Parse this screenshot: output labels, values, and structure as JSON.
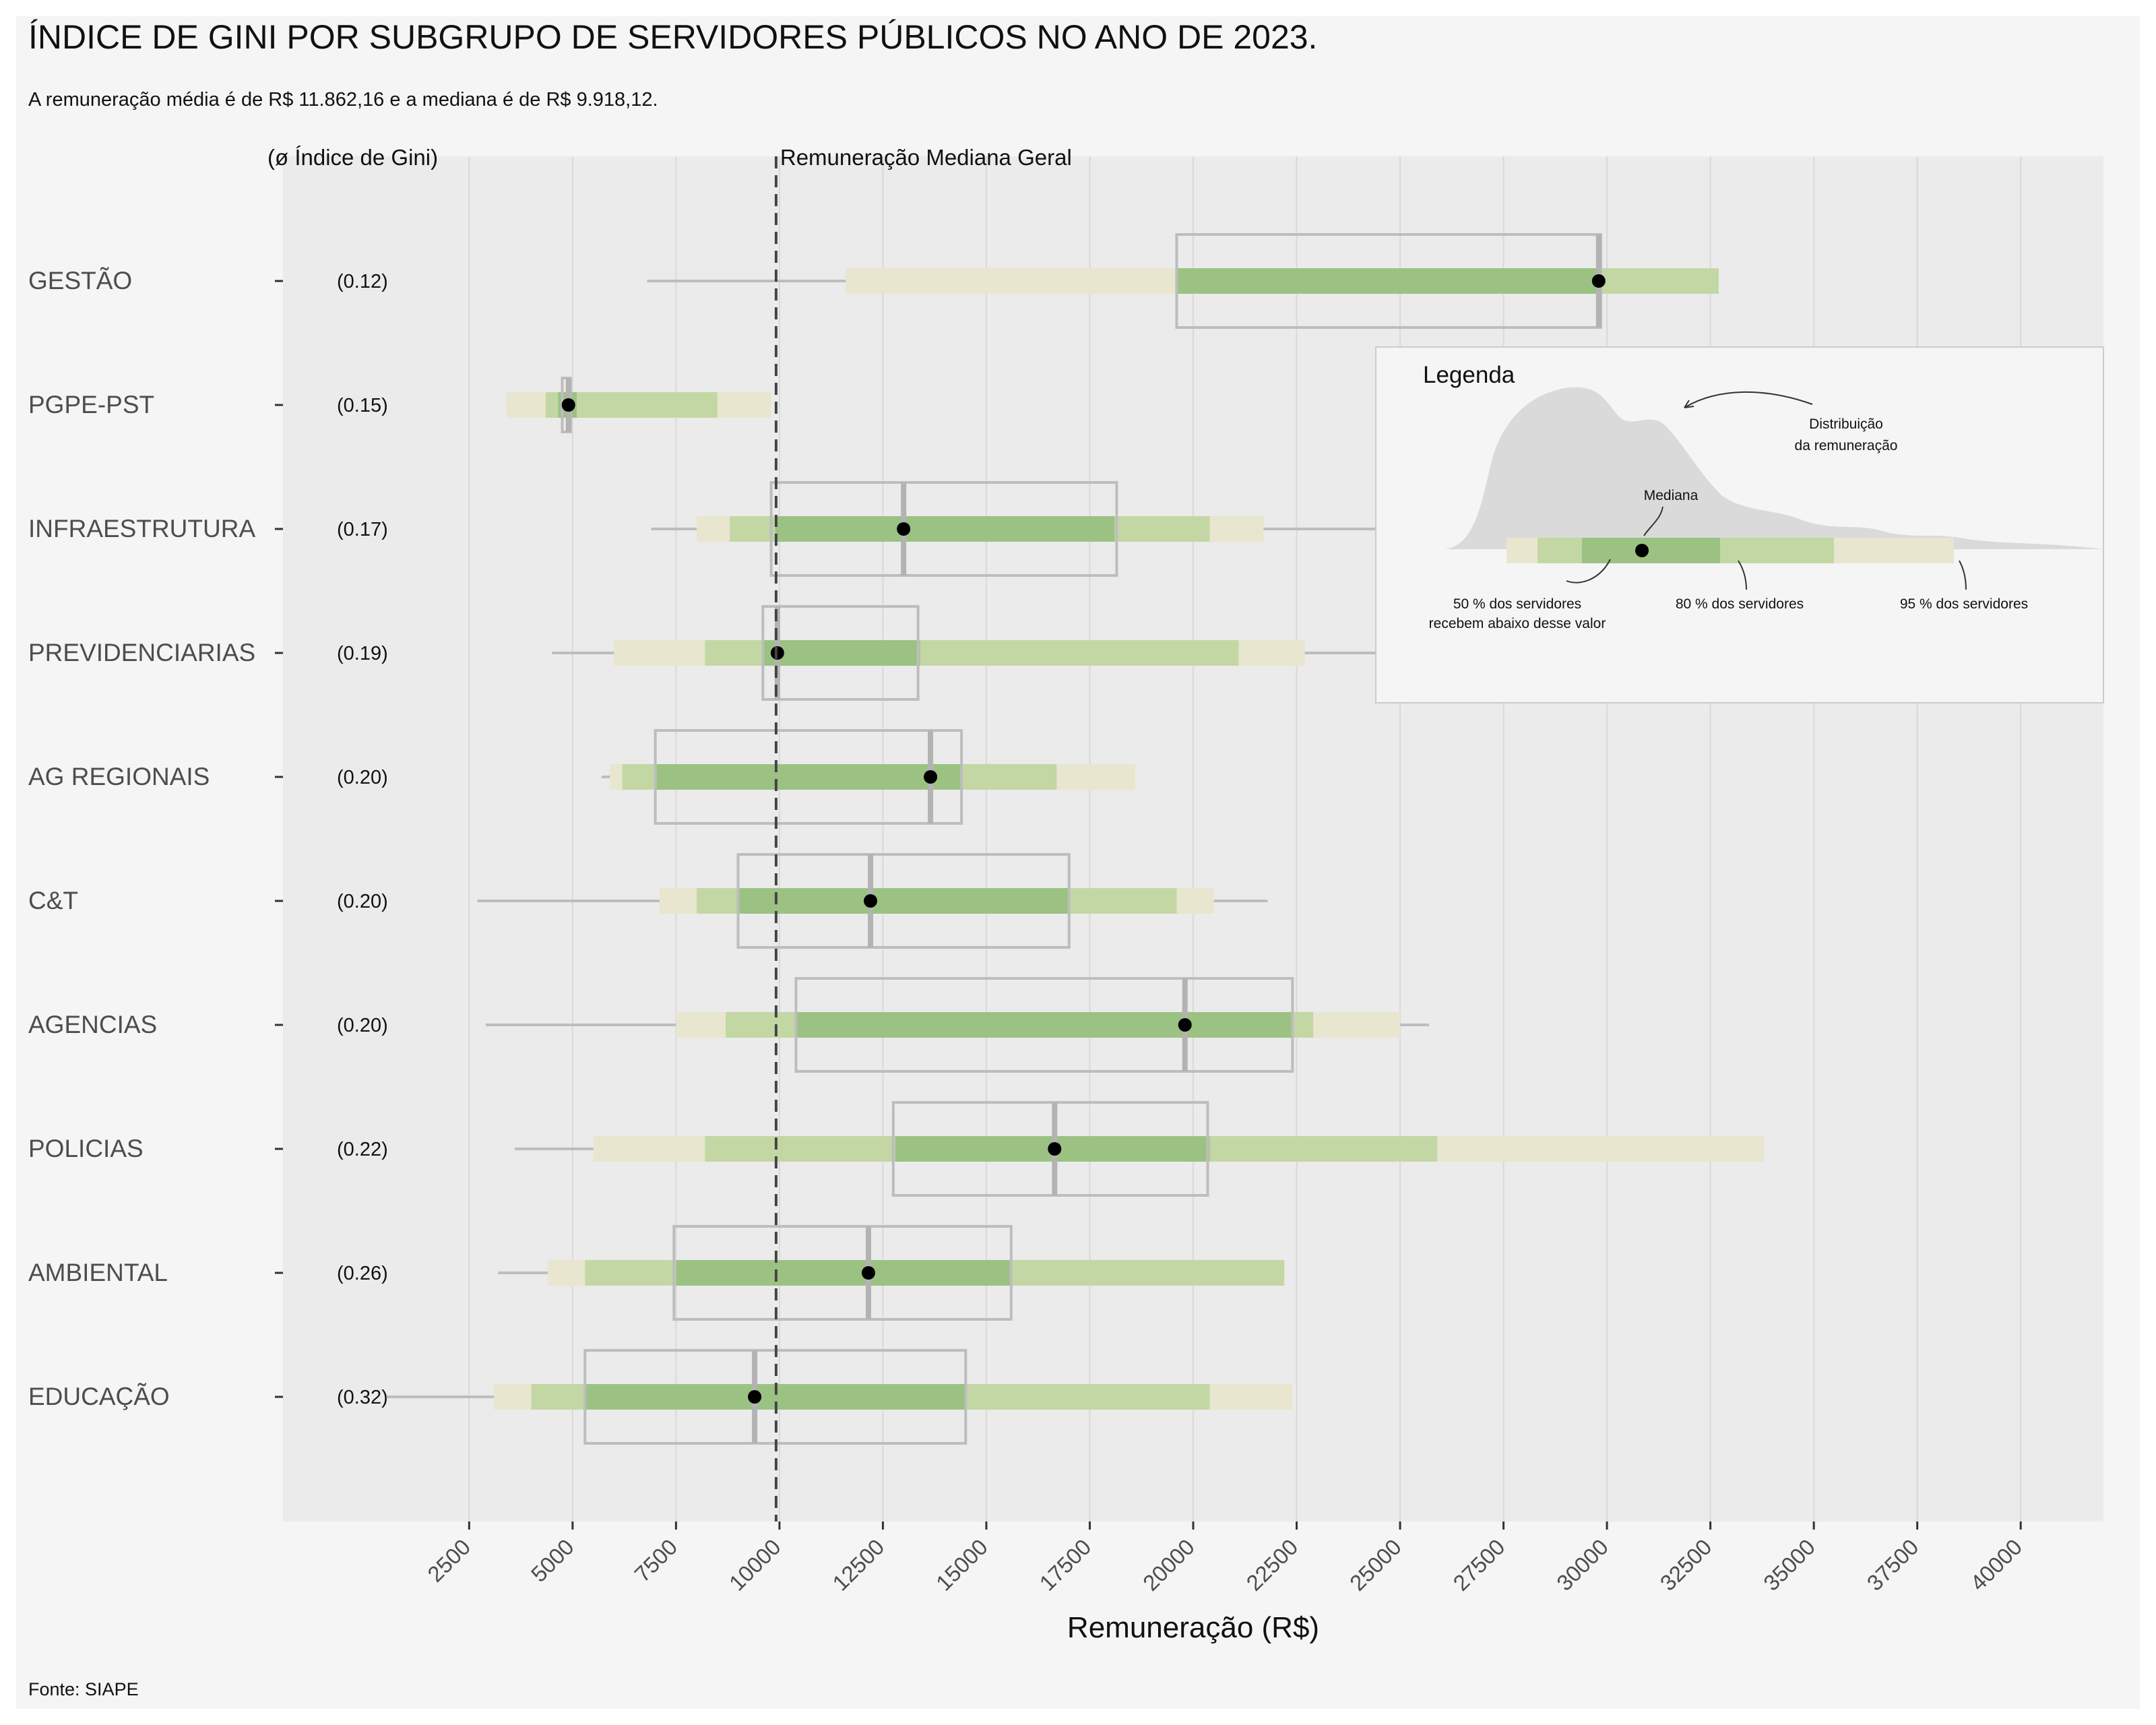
{
  "title": "ÍNDICE DE GINI POR SUBGRUPO DE SERVIDORES PÚBLICOS NO ANO DE 2023.",
  "subtitle": "A remuneração média é de R$ 11.862,16 e a mediana é de R$ 9.918,12.",
  "source": "Fonte: SIAPE",
  "colors": {
    "panel": "#ebebeb",
    "background": "#f5f5f5",
    "band95": "#e8e6cf",
    "band80": "#c3d7a4",
    "band50": "#9bc283",
    "box": "#bdbdbd",
    "dot": "#000000",
    "grid": "#d9d9d9"
  },
  "chart_data": {
    "type": "boxplot-interval",
    "xlabel": "Remuneração (R$)",
    "xticks": [
      2500,
      5000,
      7500,
      10000,
      12500,
      15000,
      17500,
      20000,
      22500,
      25000,
      27500,
      30000,
      32500,
      35000,
      37500,
      40000
    ],
    "xlim": [
      -2000,
      42000
    ],
    "gini_header": "(ø Índice de Gini)",
    "reference_line": {
      "value": 9918.12,
      "label": "Remuneração Mediana Geral"
    },
    "groups": [
      {
        "name": "GESTÃO",
        "gini": "(0.12)",
        "whisker": [
          6800,
          29800
        ],
        "p95": [
          11600,
          32700
        ],
        "p80": [
          19600,
          32700
        ],
        "p50": [
          19600,
          29800
        ],
        "box": [
          19600,
          29850
        ],
        "median": 29800
      },
      {
        "name": "PGPE-PST",
        "gini": "(0.15)",
        "whisker": [
          3400,
          9700
        ],
        "p95": [
          3400,
          9800
        ],
        "p80": [
          4350,
          8500
        ],
        "p50": [
          4650,
          5100
        ],
        "box": [
          4750,
          4950
        ],
        "median": 4900
      },
      {
        "name": "INFRAESTRUTURA",
        "gini": "(0.17)",
        "whisker": [
          6900,
          25900
        ],
        "p95": [
          8000,
          21700
        ],
        "p80": [
          8800,
          20400
        ],
        "p50": [
          9900,
          18100
        ],
        "box": [
          9800,
          18150
        ],
        "median": 13000
      },
      {
        "name": "PREVIDENCIARIAS",
        "gini": "(0.19)",
        "whisker": [
          4500,
          26000
        ],
        "p95": [
          6000,
          22700
        ],
        "p80": [
          8200,
          21100
        ],
        "p50": [
          9600,
          13400
        ],
        "box": [
          9600,
          13350
        ],
        "median": 9950
      },
      {
        "name": "AG REGIONAIS",
        "gini": "(0.20)",
        "whisker": [
          5700,
          14500
        ],
        "p95": [
          5900,
          18600
        ],
        "p80": [
          6200,
          16700
        ],
        "p50": [
          7000,
          14400
        ],
        "box": [
          7000,
          14400
        ],
        "median": 13650
      },
      {
        "name": "C&T",
        "gini": "(0.20)",
        "whisker": [
          2700,
          21800
        ],
        "p95": [
          7100,
          20500
        ],
        "p80": [
          8000,
          19600
        ],
        "p50": [
          9000,
          17000
        ],
        "box": [
          9000,
          17000
        ],
        "median": 12200
      },
      {
        "name": "AGENCIAS",
        "gini": "(0.20)",
        "whisker": [
          2900,
          25700
        ],
        "p95": [
          7500,
          25000
        ],
        "p80": [
          8700,
          22900
        ],
        "p50": [
          10400,
          22400
        ],
        "box": [
          10400,
          22400
        ],
        "median": 19800
      },
      {
        "name": "POLICIAS",
        "gini": "(0.22)",
        "whisker": [
          3600,
          16700
        ],
        "p95": [
          5500,
          33800
        ],
        "p80": [
          8200,
          25900
        ],
        "p50": [
          12800,
          20400
        ],
        "box": [
          12750,
          20350
        ],
        "median": 16650
      },
      {
        "name": "AMBIENTAL",
        "gini": "(0.26)",
        "whisker": [
          3200,
          7500
        ],
        "p95": [
          4400,
          22200
        ],
        "p80": [
          5300,
          22200
        ],
        "p50": [
          7500,
          15600
        ],
        "box": [
          7450,
          15600
        ],
        "median": 12150
      },
      {
        "name": "EDUCAÇÃO",
        "gini": "(0.32)",
        "whisker": [
          500,
          5500
        ],
        "p95": [
          3100,
          22400
        ],
        "p80": [
          4000,
          20400
        ],
        "p50": [
          5300,
          14500
        ],
        "box": [
          5300,
          14500
        ],
        "median": 9400
      }
    ]
  },
  "legend": {
    "title": "Legenda",
    "distribution": "Distribuição",
    "distribution2": "da remuneração",
    "median": "Mediana",
    "p50a": "50 % dos servidores",
    "p50b": "recebem abaixo desse valor",
    "p80": "80 % dos servidores",
    "p95": "95 % dos servidores"
  }
}
